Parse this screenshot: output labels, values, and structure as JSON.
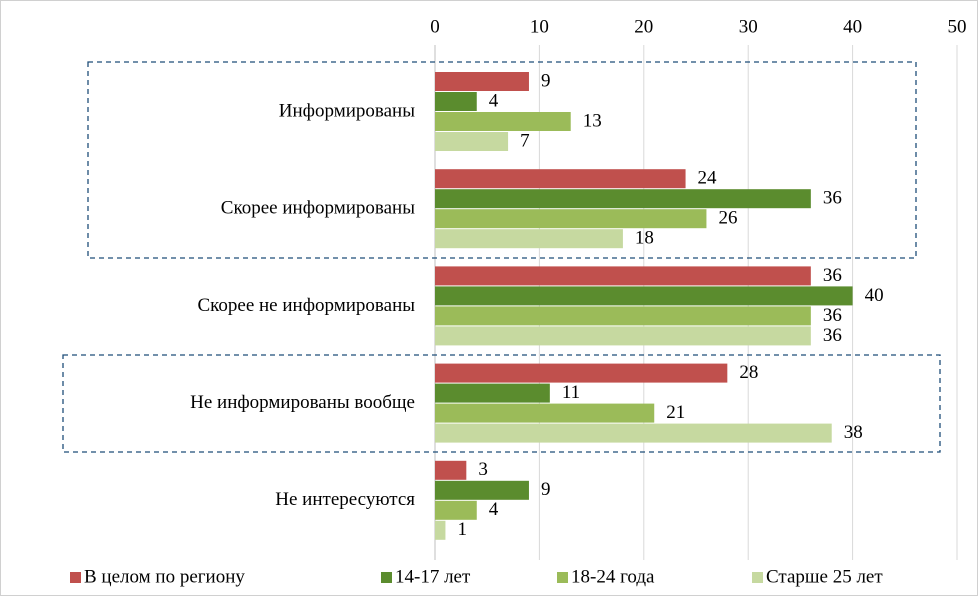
{
  "chart_data": {
    "type": "bar",
    "orientation": "horizontal",
    "categories": [
      "Информированы",
      "Скорее информированы",
      "Скорее не информированы",
      "Не информированы вообще",
      "Не интересуются"
    ],
    "series": [
      {
        "name": "В целом по региону",
        "color": "#c0504d",
        "values": [
          9,
          24,
          36,
          28,
          3
        ]
      },
      {
        "name": "14-17 лет",
        "color": "#5b8c2e",
        "values": [
          4,
          36,
          40,
          11,
          9
        ]
      },
      {
        "name": "18-24 года",
        "color": "#9bbb59",
        "values": [
          13,
          26,
          36,
          21,
          4
        ]
      },
      {
        "name": "Старше 25 лет",
        "color": "#c6d9a0",
        "values": [
          7,
          18,
          36,
          38,
          1
        ]
      }
    ],
    "xlim": [
      0,
      50
    ],
    "xticks": [
      0,
      10,
      20,
      30,
      40,
      50
    ],
    "grid": true,
    "legend": "bottom"
  }
}
